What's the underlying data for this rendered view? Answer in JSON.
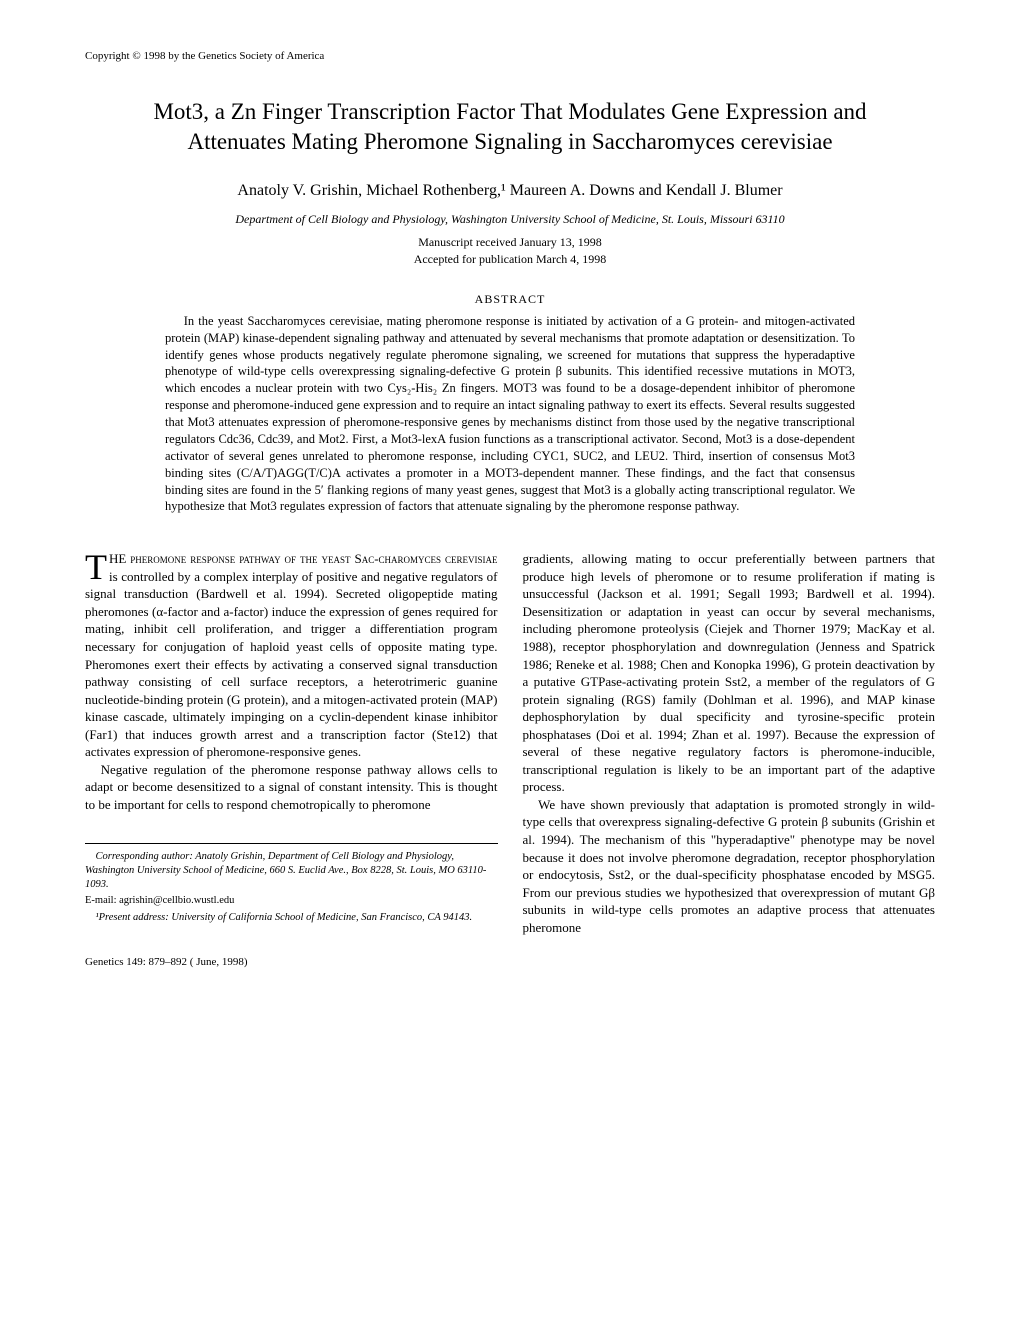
{
  "copyright": "Copyright © 1998 by the Genetics Society of America",
  "title": "Mot3, a Zn Finger Transcription Factor That Modulates Gene Expression and Attenuates Mating Pheromone Signaling in Saccharomyces cerevisiae",
  "authors": "Anatoly V. Grishin, Michael Rothenberg,¹ Maureen A. Downs and Kendall J. Blumer",
  "affiliation": "Department of Cell Biology and Physiology, Washington University School of Medicine, St. Louis, Missouri 63110",
  "received": "Manuscript received January 13, 1998",
  "accepted": "Accepted for publication March 4, 1998",
  "abstract_heading": "ABSTRACT",
  "abstract": "In the yeast Saccharomyces cerevisiae, mating pheromone response is initiated by activation of a G protein- and mitogen-activated protein (MAP) kinase-dependent signaling pathway and attenuated by several mechanisms that promote adaptation or desensitization. To identify genes whose products negatively regulate pheromone signaling, we screened for mutations that suppress the hyperadaptive phenotype of wild-type cells overexpressing signaling-defective G protein β subunits. This identified recessive mutations in MOT3, which encodes a nuclear protein with two Cys₂-His₂ Zn fingers. MOT3 was found to be a dosage-dependent inhibitor of pheromone response and pheromone-induced gene expression and to require an intact signaling pathway to exert its effects. Several results suggested that Mot3 attenuates expression of pheromone-responsive genes by mechanisms distinct from those used by the negative transcriptional regulators Cdc36, Cdc39, and Mot2. First, a Mot3-lexA fusion functions as a transcriptional activator. Second, Mot3 is a dose-dependent activator of several genes unrelated to pheromone response, including CYC1, SUC2, and LEU2. Third, insertion of consensus Mot3 binding sites (C/A/T)AGG(T/C)A activates a promoter in a MOT3-dependent manner. These findings, and the fact that consensus binding sites are found in the 5′ flanking regions of many yeast genes, suggest that Mot3 is a globally acting transcriptional regulator. We hypothesize that Mot3 regulates expression of factors that attenuate signaling by the pheromone response pathway.",
  "col1_p1_lead": "HE pheromone response pathway of the yeast Sac-charomyces cerevisiae",
  "col1_p1_rest": " is controlled by a complex interplay of positive and negative regulators of signal transduction (Bardwell et al. 1994). Secreted oligopeptide mating pheromones (α-factor and a-factor) induce the expression of genes required for mating, inhibit cell proliferation, and trigger a differentiation program necessary for conjugation of haploid yeast cells of opposite mating type. Pheromones exert their effects by activating a conserved signal transduction pathway consisting of cell surface receptors, a heterotrimeric guanine nucleotide-binding protein (G protein), and a mitogen-activated protein (MAP) kinase cascade, ultimately impinging on a cyclin-dependent kinase inhibitor (Far1) that induces growth arrest and a transcription factor (Ste12) that activates expression of pheromone-responsive genes.",
  "col1_p2": "Negative regulation of the pheromone response pathway allows cells to adapt or become desensitized to a signal of constant intensity. This is thought to be important for cells to respond chemotropically to pheromone",
  "col2_p1": "gradients, allowing mating to occur preferentially between partners that produce high levels of pheromone or to resume proliferation if mating is unsuccessful (Jackson et al. 1991; Segall 1993; Bardwell et al. 1994). Desensitization or adaptation in yeast can occur by several mechanisms, including pheromone proteolysis (Ciejek and Thorner 1979; MacKay et al. 1988), receptor phosphorylation and downregulation (Jenness and Spatrick 1986; Reneke et al. 1988; Chen and Konopka 1996), G protein deactivation by a putative GTPase-activating protein Sst2, a member of the regulators of G protein signaling (RGS) family (Dohlman et al. 1996), and MAP kinase dephosphorylation by dual specificity and tyrosine-specific protein phosphatases (Doi et al. 1994; Zhan et al. 1997). Because the expression of several of these negative regulatory factors is pheromone-inducible, transcriptional regulation is likely to be an important part of the adaptive process.",
  "col2_p2": "We have shown previously that adaptation is promoted strongly in wild-type cells that overexpress signaling-defective G protein β subunits (Grishin et al. 1994). The mechanism of this \"hyperadaptive\" phenotype may be novel because it does not involve pheromone degradation, receptor phosphorylation or endocytosis, Sst2, or the dual-specificity phosphatase encoded by MSG5. From our previous studies we hypothesized that overexpression of mutant Gβ subunits in wild-type cells promotes an adaptive process that attenuates pheromone",
  "footnote_corresponding": "Corresponding author: Anatoly Grishin, Department of Cell Biology and Physiology, Washington University School of Medicine, 660 S. Euclid Ave., Box 8228, St. Louis, MO 63110-1093.",
  "footnote_email": "E-mail: agrishin@cellbio.wustl.edu",
  "footnote_present": "¹Present address: University of California School of Medicine, San Francisco, CA 94143.",
  "journal": "Genetics 149: 879–892 ( June, 1998)"
}
